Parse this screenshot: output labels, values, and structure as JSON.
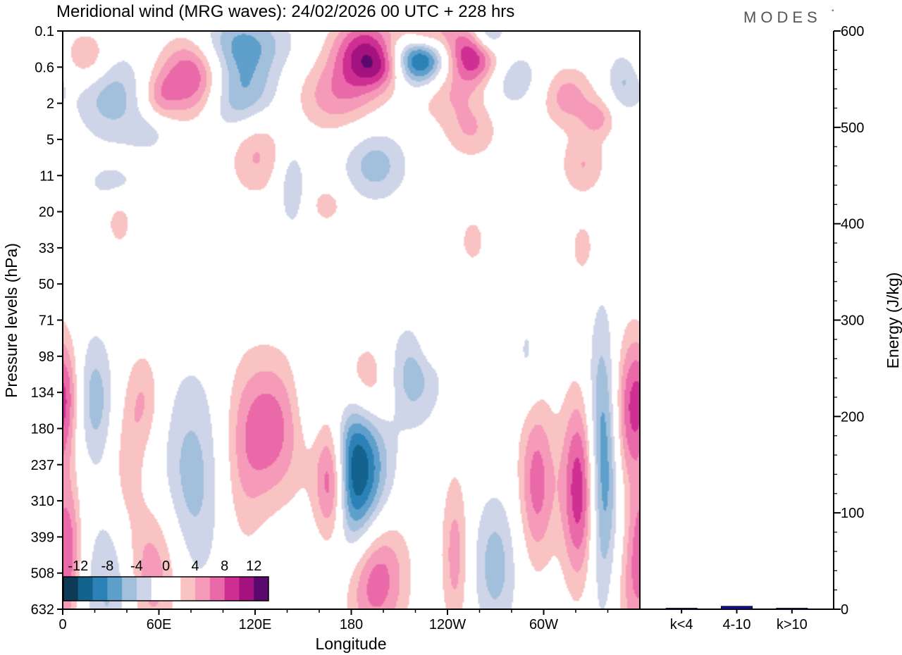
{
  "title": "Meridional wind (MRG waves):  24/02/2026  00 UTC  + 228 hrs",
  "brand": "MODES",
  "brand_mark": "°",
  "chart_data": [
    {
      "type": "heatmap",
      "title": "Meridional wind (MRG waves):  24/02/2026  00 UTC  + 228 hrs",
      "xlabel": "Longitude",
      "ylabel": "Pressure levels (hPa)",
      "x_ticks": [
        "0",
        "60E",
        "120E",
        "180",
        "120W",
        "60W"
      ],
      "x_tick_degrees": [
        0,
        60,
        120,
        180,
        240,
        300
      ],
      "xlim": [
        0,
        360
      ],
      "y_ticks": [
        "0.1",
        "0.6",
        "2",
        "5",
        "11",
        "20",
        "33",
        "50",
        "71",
        "98",
        "134",
        "180",
        "237",
        "310",
        "399",
        "508",
        "632"
      ],
      "colorbar": {
        "levels": [
          -14,
          -12,
          -10,
          -8,
          -6,
          -4,
          -2,
          0,
          2,
          4,
          6,
          8,
          10,
          12,
          14
        ],
        "tick_labels": [
          "-12",
          "-8",
          "-4",
          "0",
          "4",
          "8",
          "12"
        ],
        "colors": [
          "#0d3b57",
          "#13638e",
          "#2c82b6",
          "#5f9fcc",
          "#a2bfdc",
          "#cfd5e8",
          "#ffffff",
          "#ffffff",
          "#f9c3c3",
          "#f59ab8",
          "#ea69a8",
          "#cf2f93",
          "#a3127f",
          "#5a0a6e"
        ]
      },
      "features": [
        {
          "lon": 182,
          "level_index": 12.2,
          "value": -14,
          "sx": 14,
          "sy": 2.0
        },
        {
          "lon": 168,
          "level_index": 12.5,
          "value": 11,
          "sx": 7,
          "sy": 1.2
        },
        {
          "lon": 160,
          "level_index": 11.0,
          "value": 4,
          "sx": 10,
          "sy": 2.0
        },
        {
          "lon": 155,
          "level_index": 10.2,
          "value": -4,
          "sx": 8,
          "sy": 1.2
        },
        {
          "lon": 190,
          "level_index": 9.8,
          "value": 9,
          "sx": 14,
          "sy": 1.0
        },
        {
          "lon": 215,
          "level_index": 9.6,
          "value": -6,
          "sx": 14,
          "sy": 1.0
        },
        {
          "lon": 193,
          "level_index": 15.0,
          "value": 10,
          "sx": 14,
          "sy": 1.3
        },
        {
          "lon": 130,
          "level_index": 11.0,
          "value": 7,
          "sx": 14,
          "sy": 1.4
        },
        {
          "lon": 112,
          "level_index": 12.0,
          "value": 3,
          "sx": 10,
          "sy": 2.0
        },
        {
          "lon": 80,
          "level_index": 12.5,
          "value": -5,
          "sx": 14,
          "sy": 2.2
        },
        {
          "lon": 55,
          "level_index": 15.0,
          "value": 6,
          "sx": 14,
          "sy": 1.4
        },
        {
          "lon": 30,
          "level_index": 15.5,
          "value": -5,
          "sx": 12,
          "sy": 1.5
        },
        {
          "lon": 20,
          "level_index": 10.2,
          "value": -5,
          "sx": 8,
          "sy": 1.3
        },
        {
          "lon": 50,
          "level_index": 10.2,
          "value": 4,
          "sx": 8,
          "sy": 1.0
        },
        {
          "lon": 40,
          "level_index": 12.0,
          "value": 3,
          "sx": 7,
          "sy": 1.2
        },
        {
          "lon": 3,
          "level_index": 14.3,
          "value": 6,
          "sx": 6,
          "sy": 1.3
        },
        {
          "lon": 3,
          "level_index": 10.0,
          "value": 3,
          "sx": 5,
          "sy": 1.0
        },
        {
          "lon": 245,
          "level_index": 14.5,
          "value": 5,
          "sx": 6,
          "sy": 1.6
        },
        {
          "lon": 270,
          "level_index": 14.8,
          "value": -5,
          "sx": 10,
          "sy": 1.4
        },
        {
          "lon": 296,
          "level_index": 12.5,
          "value": 7,
          "sx": 8,
          "sy": 1.6
        },
        {
          "lon": 323,
          "level_index": 12.7,
          "value": 10,
          "sx": 8,
          "sy": 1.8
        },
        {
          "lon": 337,
          "level_index": 12.0,
          "value": -9,
          "sx": 7,
          "sy": 2.6
        },
        {
          "lon": 355,
          "level_index": 10.5,
          "value": 8,
          "sx": 8,
          "sy": 1.5
        },
        {
          "lon": 355,
          "level_index": 15.5,
          "value": 4,
          "sx": 8,
          "sy": 1.5
        },
        {
          "lon": 230,
          "level_index": 8.6,
          "value": 2.5,
          "sx": 6,
          "sy": 0.5
        },
        {
          "lon": 290,
          "level_index": 9.0,
          "value": -2.5,
          "sx": 6,
          "sy": 1.0
        },
        {
          "lon": 80,
          "level_index": 1.2,
          "value": 9,
          "sx": 14,
          "sy": 0.8
        },
        {
          "lon": 112,
          "level_index": 1.8,
          "value": -7,
          "sx": 16,
          "sy": 0.8
        },
        {
          "lon": 110,
          "level_index": 0.3,
          "value": -6,
          "sx": 22,
          "sy": 0.6
        },
        {
          "lon": 188,
          "level_index": 0.6,
          "value": 10,
          "sx": 14,
          "sy": 0.7
        },
        {
          "lon": 223,
          "level_index": 0.7,
          "value": -14,
          "sx": 12,
          "sy": 0.6
        },
        {
          "lon": 257,
          "level_index": 0.6,
          "value": 11,
          "sx": 12,
          "sy": 0.6
        },
        {
          "lon": 225,
          "level_index": 0.1,
          "value": 10,
          "sx": 12,
          "sy": 0.4
        },
        {
          "lon": 265,
          "level_index": 0.1,
          "value": -8,
          "sx": 8,
          "sy": 0.4
        },
        {
          "lon": 170,
          "level_index": 1.8,
          "value": 5,
          "sx": 18,
          "sy": 0.7
        },
        {
          "lon": 235,
          "level_index": 1.6,
          "value": 4,
          "sx": 16,
          "sy": 0.6
        },
        {
          "lon": 280,
          "level_index": 1.3,
          "value": -4,
          "sx": 14,
          "sy": 0.6
        },
        {
          "lon": 315,
          "level_index": 1.8,
          "value": 5,
          "sx": 12,
          "sy": 0.6
        },
        {
          "lon": 30,
          "level_index": 1.8,
          "value": -5,
          "sx": 16,
          "sy": 0.9
        },
        {
          "lon": 15,
          "level_index": 0.7,
          "value": 5,
          "sx": 10,
          "sy": 0.5
        },
        {
          "lon": 350,
          "level_index": 1.4,
          "value": -4,
          "sx": 8,
          "sy": 0.6
        },
        {
          "lon": 120,
          "level_index": 3.2,
          "value": 5,
          "sx": 12,
          "sy": 0.9
        },
        {
          "lon": 195,
          "level_index": 3.7,
          "value": -5,
          "sx": 14,
          "sy": 0.7
        },
        {
          "lon": 255,
          "level_index": 2.7,
          "value": 4,
          "sx": 12,
          "sy": 0.6
        },
        {
          "lon": 325,
          "level_index": 3.7,
          "value": 4,
          "sx": 10,
          "sy": 0.6
        },
        {
          "lon": 335,
          "level_index": 2.4,
          "value": 4,
          "sx": 8,
          "sy": 0.4
        },
        {
          "lon": 143,
          "level_index": 4.3,
          "value": -4,
          "sx": 6,
          "sy": 0.8
        },
        {
          "lon": 30,
          "level_index": 4.2,
          "value": -2.5,
          "sx": 14,
          "sy": 0.4
        },
        {
          "lon": 165,
          "level_index": 4.8,
          "value": 3,
          "sx": 8,
          "sy": 0.4
        },
        {
          "lon": 35,
          "level_index": 5.3,
          "value": 3,
          "sx": 6,
          "sy": 0.5
        },
        {
          "lon": 256,
          "level_index": 5.8,
          "value": 3,
          "sx": 6,
          "sy": 0.5
        },
        {
          "lon": 325,
          "level_index": 6.0,
          "value": 3,
          "sx": 6,
          "sy": 0.6
        },
        {
          "lon": 60,
          "level_index": 1.8,
          "value": 4,
          "sx": 8,
          "sy": 0.5
        },
        {
          "lon": 55,
          "level_index": 2.8,
          "value": -2.5,
          "sx": 10,
          "sy": 0.4
        },
        {
          "lon": 200,
          "level_index": 1.0,
          "value": 4,
          "sx": 10,
          "sy": 0.4
        }
      ]
    },
    {
      "type": "bar",
      "categories": [
        "k<4",
        "4-10",
        "k>10"
      ],
      "values": [
        1,
        3,
        1
      ],
      "ylabel": "Energy (J/kg)",
      "ylim": [
        0,
        600
      ],
      "y_ticks": [
        "0",
        "100",
        "200",
        "300",
        "400",
        "500",
        "600"
      ],
      "bar_color": "#10109a"
    }
  ]
}
